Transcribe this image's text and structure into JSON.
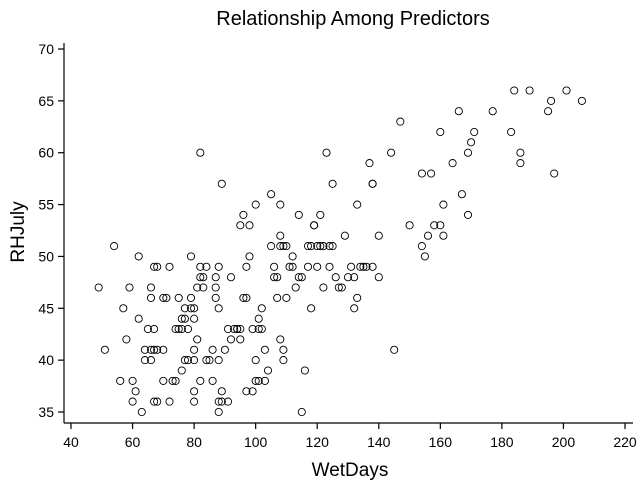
{
  "chart_data": {
    "type": "scatter",
    "title": "Relationship Among Predictors",
    "xlabel": "WetDays",
    "ylabel": "RHJuly",
    "xlim": [
      37,
      226
    ],
    "ylim": [
      34,
      71
    ],
    "xticks": [
      "40",
      "60",
      "80",
      "100",
      "120",
      "140",
      "160",
      "180",
      "200",
      "220"
    ],
    "yticks": [
      "35",
      "40",
      "45",
      "50",
      "55",
      "60",
      "65",
      "70"
    ],
    "grid": false,
    "legend": "none",
    "marker": "open-circle",
    "points": [
      [
        49,
        47
      ],
      [
        51,
        41
      ],
      [
        54,
        51
      ],
      [
        56,
        38
      ],
      [
        57,
        45
      ],
      [
        58,
        42
      ],
      [
        59,
        47
      ],
      [
        60,
        38
      ],
      [
        60,
        36
      ],
      [
        61,
        37
      ],
      [
        62,
        50
      ],
      [
        62,
        44
      ],
      [
        63,
        35
      ],
      [
        64,
        41
      ],
      [
        64,
        40
      ],
      [
        65,
        43
      ],
      [
        66,
        47
      ],
      [
        66,
        46
      ],
      [
        66,
        41
      ],
      [
        66,
        40
      ],
      [
        67,
        49
      ],
      [
        67,
        43
      ],
      [
        67,
        36
      ],
      [
        67,
        41
      ],
      [
        68,
        49
      ],
      [
        68,
        41
      ],
      [
        68,
        36
      ],
      [
        70,
        41
      ],
      [
        70,
        38
      ],
      [
        70,
        46
      ],
      [
        71,
        46
      ],
      [
        72,
        49
      ],
      [
        72,
        36
      ],
      [
        73,
        38
      ],
      [
        74,
        43
      ],
      [
        74,
        38
      ],
      [
        75,
        46
      ],
      [
        75,
        43
      ],
      [
        76,
        44
      ],
      [
        76,
        39
      ],
      [
        76,
        43
      ],
      [
        77,
        45
      ],
      [
        77,
        40
      ],
      [
        77,
        44
      ],
      [
        78,
        43
      ],
      [
        78,
        40
      ],
      [
        79,
        45
      ],
      [
        79,
        46
      ],
      [
        79,
        50
      ],
      [
        80,
        45
      ],
      [
        80,
        44
      ],
      [
        80,
        41
      ],
      [
        80,
        40
      ],
      [
        80,
        37
      ],
      [
        80,
        36
      ],
      [
        81,
        47
      ],
      [
        81,
        42
      ],
      [
        82,
        38
      ],
      [
        82,
        60
      ],
      [
        82,
        48
      ],
      [
        82,
        49
      ],
      [
        83,
        47
      ],
      [
        83,
        48
      ],
      [
        84,
        49
      ],
      [
        84,
        40
      ],
      [
        85,
        40
      ],
      [
        86,
        38
      ],
      [
        86,
        41
      ],
      [
        87,
        47
      ],
      [
        87,
        46
      ],
      [
        87,
        48
      ],
      [
        88,
        49
      ],
      [
        88,
        45
      ],
      [
        88,
        40
      ],
      [
        88,
        36
      ],
      [
        88,
        35
      ],
      [
        89,
        57
      ],
      [
        89,
        37
      ],
      [
        89,
        36
      ],
      [
        90,
        41
      ],
      [
        91,
        36
      ],
      [
        91,
        43
      ],
      [
        92,
        48
      ],
      [
        92,
        42
      ],
      [
        93,
        43
      ],
      [
        94,
        43
      ],
      [
        94,
        43
      ],
      [
        95,
        43
      ],
      [
        95,
        42
      ],
      [
        95,
        53
      ],
      [
        96,
        54
      ],
      [
        96,
        46
      ],
      [
        97,
        46
      ],
      [
        97,
        49
      ],
      [
        97,
        37
      ],
      [
        98,
        50
      ],
      [
        98,
        53
      ],
      [
        99,
        43
      ],
      [
        99,
        37
      ],
      [
        100,
        38
      ],
      [
        100,
        40
      ],
      [
        100,
        55
      ],
      [
        101,
        43
      ],
      [
        101,
        44
      ],
      [
        101,
        38
      ],
      [
        102,
        43
      ],
      [
        102,
        45
      ],
      [
        103,
        38
      ],
      [
        103,
        41
      ],
      [
        104,
        39
      ],
      [
        105,
        56
      ],
      [
        105,
        51
      ],
      [
        106,
        49
      ],
      [
        106,
        48
      ],
      [
        107,
        48
      ],
      [
        107,
        46
      ],
      [
        108,
        55
      ],
      [
        108,
        52
      ],
      [
        108,
        51
      ],
      [
        108,
        42
      ],
      [
        109,
        41
      ],
      [
        109,
        40
      ],
      [
        109,
        51
      ],
      [
        110,
        51
      ],
      [
        110,
        46
      ],
      [
        111,
        49
      ],
      [
        112,
        49
      ],
      [
        112,
        50
      ],
      [
        113,
        47
      ],
      [
        114,
        54
      ],
      [
        114,
        48
      ],
      [
        115,
        48
      ],
      [
        115,
        35
      ],
      [
        116,
        39
      ],
      [
        117,
        51
      ],
      [
        117,
        49
      ],
      [
        118,
        45
      ],
      [
        118,
        51
      ],
      [
        119,
        53
      ],
      [
        119,
        53
      ],
      [
        120,
        51
      ],
      [
        120,
        49
      ],
      [
        121,
        51
      ],
      [
        121,
        54
      ],
      [
        122,
        51
      ],
      [
        122,
        47
      ],
      [
        123,
        60
      ],
      [
        124,
        51
      ],
      [
        124,
        49
      ],
      [
        125,
        51
      ],
      [
        125,
        57
      ],
      [
        126,
        48
      ],
      [
        127,
        47
      ],
      [
        128,
        47
      ],
      [
        129,
        52
      ],
      [
        130,
        48
      ],
      [
        131,
        49
      ],
      [
        132,
        48
      ],
      [
        132,
        45
      ],
      [
        133,
        46
      ],
      [
        133,
        55
      ],
      [
        134,
        49
      ],
      [
        135,
        49
      ],
      [
        136,
        49
      ],
      [
        137,
        59
      ],
      [
        138,
        57
      ],
      [
        138,
        57
      ],
      [
        138,
        49
      ],
      [
        140,
        48
      ],
      [
        140,
        52
      ],
      [
        144,
        60
      ],
      [
        145,
        41
      ],
      [
        147,
        63
      ],
      [
        150,
        53
      ],
      [
        154,
        51
      ],
      [
        154,
        58
      ],
      [
        155,
        50
      ],
      [
        156,
        52
      ],
      [
        157,
        58
      ],
      [
        158,
        53
      ],
      [
        160,
        62
      ],
      [
        160,
        53
      ],
      [
        161,
        55
      ],
      [
        161,
        52
      ],
      [
        164,
        59
      ],
      [
        166,
        64
      ],
      [
        167,
        56
      ],
      [
        169,
        54
      ],
      [
        169,
        60
      ],
      [
        170,
        61
      ],
      [
        171,
        62
      ],
      [
        177,
        64
      ],
      [
        183,
        62
      ],
      [
        184,
        66
      ],
      [
        186,
        60
      ],
      [
        186,
        59
      ],
      [
        189,
        66
      ],
      [
        195,
        64
      ],
      [
        196,
        65
      ],
      [
        197,
        58
      ],
      [
        201,
        66
      ],
      [
        206,
        65
      ]
    ]
  }
}
